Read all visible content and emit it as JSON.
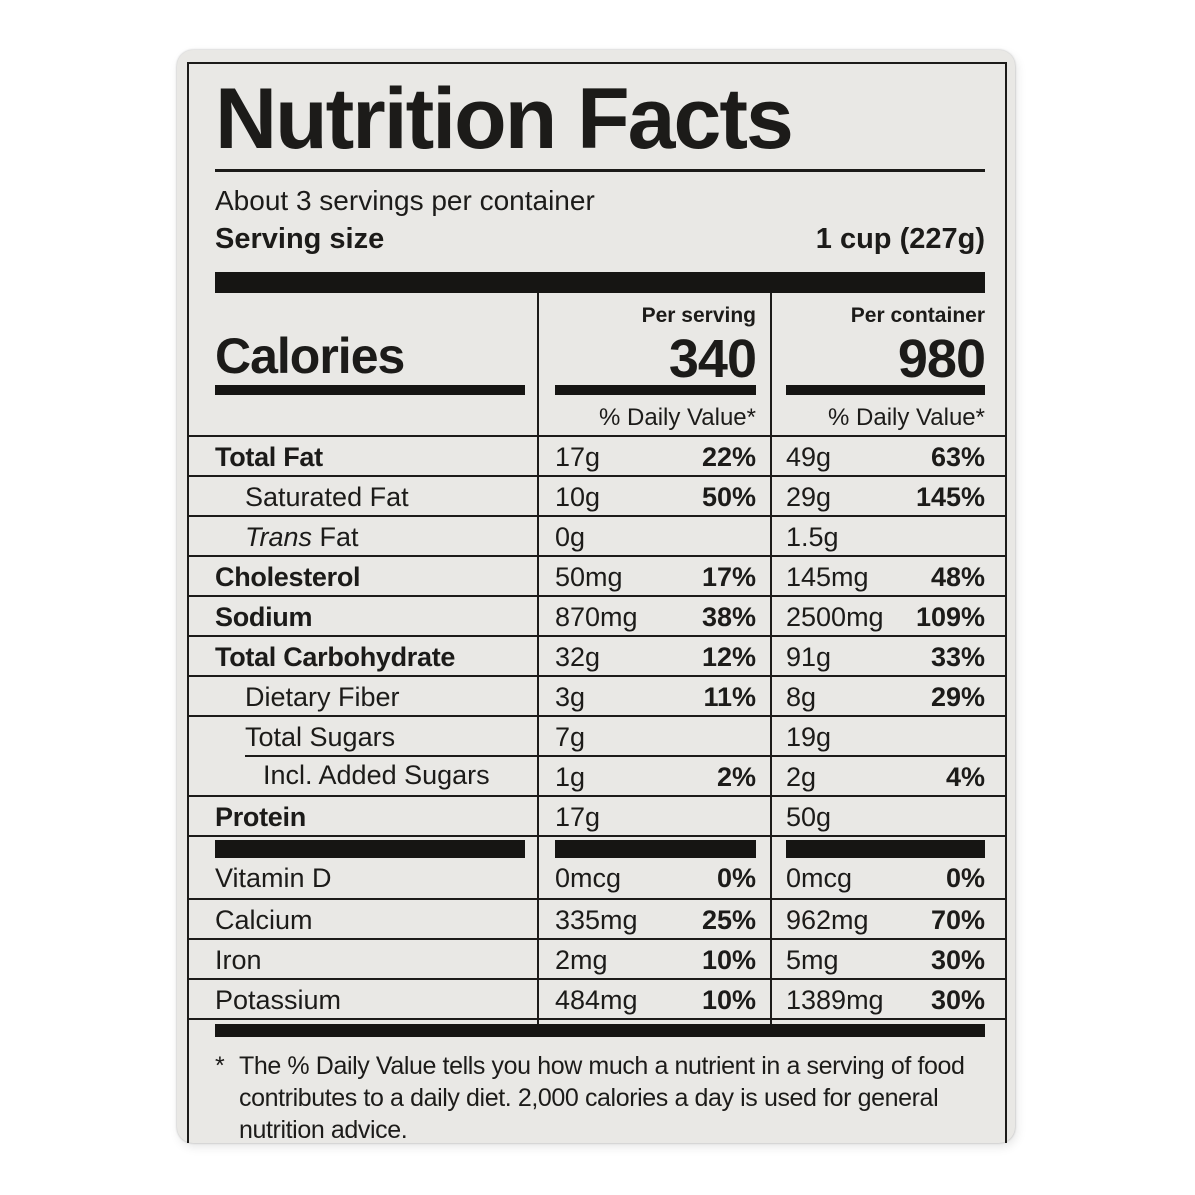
{
  "label": {
    "title": "Nutrition Facts",
    "servings_line": "About 3 servings per container",
    "serving_size": {
      "label": "Serving size",
      "value": "1 cup (227g)"
    },
    "calories": {
      "label": "Calories",
      "per_serving_header": "Per serving",
      "per_serving_value": "340",
      "per_container_header": "Per container",
      "per_container_value": "980"
    },
    "daily_value_header": "% Daily Value*",
    "colors": {
      "ink": "#1c1b19",
      "card_background": "#e9e8e5"
    },
    "nutrients": [
      {
        "name": "Total Fat",
        "serving_amount": "17g",
        "serving_dv": "22%",
        "container_amount": "49g",
        "container_dv": "63%"
      },
      {
        "name": "Saturated Fat",
        "serving_amount": "10g",
        "serving_dv": "50%",
        "container_amount": "29g",
        "container_dv": "145%"
      },
      {
        "name_italic": "Trans",
        "name": " Fat",
        "serving_amount": "0g",
        "serving_dv": "",
        "container_amount": "1.5g",
        "container_dv": ""
      },
      {
        "name": "Cholesterol",
        "serving_amount": "50mg",
        "serving_dv": "17%",
        "container_amount": "145mg",
        "container_dv": "48%"
      },
      {
        "name": "Sodium",
        "serving_amount": "870mg",
        "serving_dv": "38%",
        "container_amount": "2500mg",
        "container_dv": "109%"
      },
      {
        "name": "Total Carbohydrate",
        "serving_amount": "32g",
        "serving_dv": "12%",
        "container_amount": "91g",
        "container_dv": "33%"
      },
      {
        "name": "Dietary Fiber",
        "serving_amount": "3g",
        "serving_dv": "11%",
        "container_amount": "8g",
        "container_dv": "29%"
      },
      {
        "name": "Total Sugars",
        "serving_amount": "7g",
        "serving_dv": "",
        "container_amount": "19g",
        "container_dv": ""
      },
      {
        "name": "Incl. Added Sugars",
        "serving_amount": "1g",
        "serving_dv": "2%",
        "container_amount": "2g",
        "container_dv": "4%"
      },
      {
        "name": "Protein",
        "serving_amount": "17g",
        "serving_dv": "",
        "container_amount": "50g",
        "container_dv": ""
      }
    ],
    "vitamins": [
      {
        "name": "Vitamin D",
        "serving_amount": "0mcg",
        "serving_dv": "0%",
        "container_amount": "0mcg",
        "container_dv": "0%"
      },
      {
        "name": "Calcium",
        "serving_amount": "335mg",
        "serving_dv": "25%",
        "container_amount": "962mg",
        "container_dv": "70%"
      },
      {
        "name": "Iron",
        "serving_amount": "2mg",
        "serving_dv": "10%",
        "container_amount": "5mg",
        "container_dv": "30%"
      },
      {
        "name": "Potassium",
        "serving_amount": "484mg",
        "serving_dv": "10%",
        "container_amount": "1389mg",
        "container_dv": "30%"
      }
    ],
    "footnote": {
      "marker": "*",
      "text": "The % Daily Value tells you how much a nutrient in a serving of food contributes to a daily diet. 2,000 calories a day is used for general nutrition advice."
    }
  }
}
